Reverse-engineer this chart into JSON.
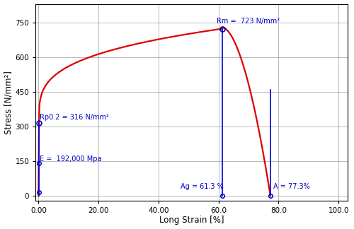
{
  "xlabel": "Long Strain [%]",
  "ylabel": "Stress [N/mm²]",
  "xlim": [
    -1.0,
    103.0
  ],
  "ylim": [
    -20,
    830
  ],
  "xticks": [
    0.0,
    20.0,
    40.0,
    60.0,
    80.0,
    100.0
  ],
  "xtick_labels": [
    "0.00",
    "20.00",
    "40.00",
    "60.0",
    "80.0",
    "100.0"
  ],
  "yticks": [
    0,
    150,
    300,
    450,
    600,
    750
  ],
  "curve_color": "#dd0000",
  "marker_color": "#0000cc",
  "line_color": "#0000cc",
  "bg_color": "#ffffff",
  "grid_color": "#999999",
  "Rp02_x": 0.165,
  "Rp02_y": 316,
  "Rp02_label": "Rp0.2 = 316 N/mm²",
  "Rm_x": 61.3,
  "Rm_y": 723,
  "Rm_label": "Rm =  723 N/mm²",
  "E_label": "E =  192,000 Mpa",
  "Ag_label": "Ag = 61.3 %",
  "A_x": 77.3,
  "A_label": "A = 77.3%",
  "E_dot1_y": 140,
  "E_dot2_y": 15
}
